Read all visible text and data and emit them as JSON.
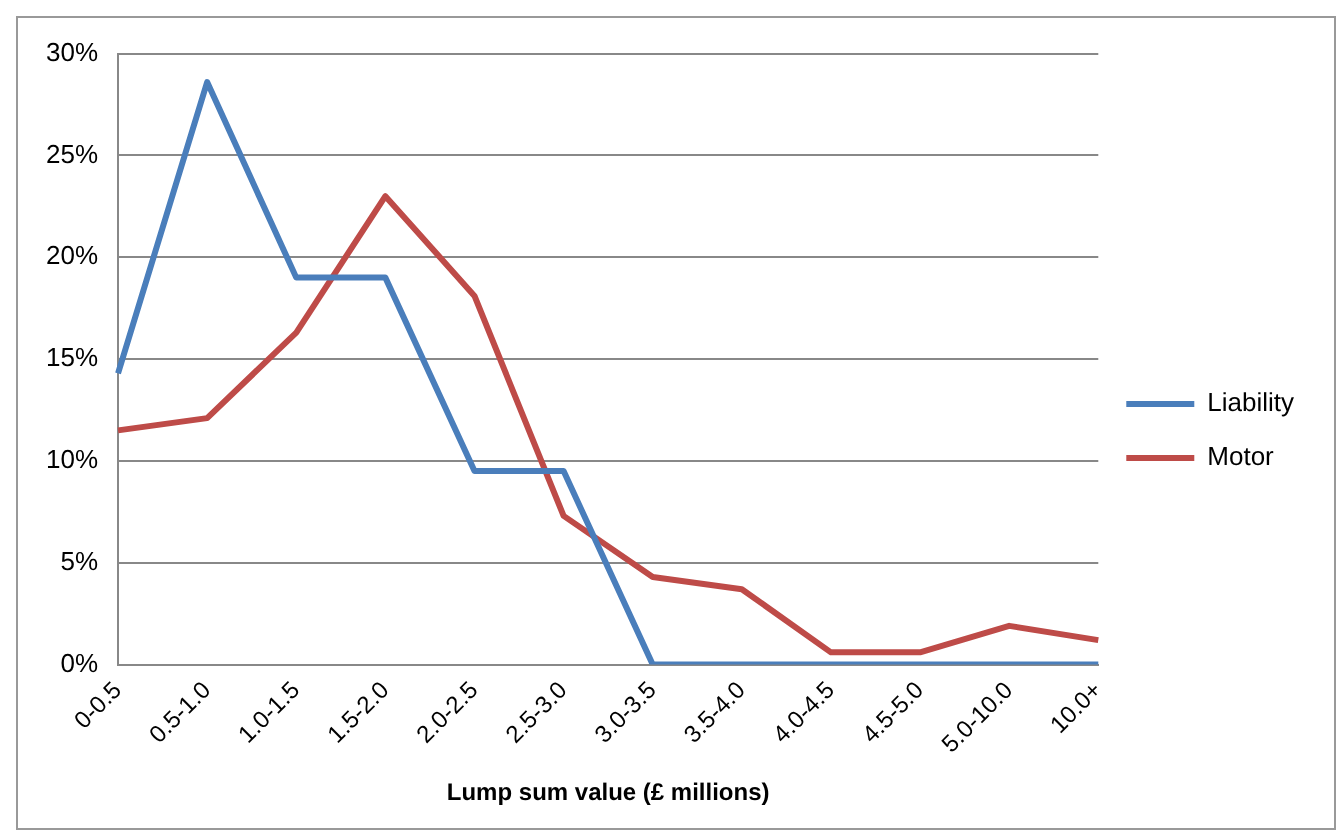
{
  "chart_data": {
    "type": "line",
    "xlabel": "Lump sum value (£ millions)",
    "categories": [
      "0-0.5",
      "0.5-1.0",
      "1.0-1.5",
      "1.5-2.0",
      "2.0-2.5",
      "2.5-3.0",
      "3.0-3.5",
      "3.5-4.0",
      "4.0-4.5",
      "4.5-5.0",
      "5.0-10.0",
      "10.0+"
    ],
    "series": [
      {
        "name": "Liability",
        "color": "#4a7ebb",
        "values": [
          14.3,
          28.6,
          19.0,
          19.0,
          9.5,
          9.5,
          0,
          0,
          0,
          0,
          0,
          0
        ]
      },
      {
        "name": "Motor",
        "color": "#be4b48",
        "values": [
          11.5,
          12.1,
          16.3,
          23.0,
          18.1,
          7.3,
          4.3,
          3.7,
          0.6,
          0.6,
          1.9,
          1.2
        ]
      }
    ],
    "ylim": [
      0,
      30
    ],
    "yticks": [
      {
        "value": 0,
        "label": "0%"
      },
      {
        "value": 5,
        "label": "5%"
      },
      {
        "value": 10,
        "label": "10%"
      },
      {
        "value": 15,
        "label": "15%"
      },
      {
        "value": 20,
        "label": "20%"
      },
      {
        "value": 25,
        "label": "25%"
      },
      {
        "value": 30,
        "label": "30%"
      }
    ],
    "grid": "y",
    "legend": "right",
    "marker": "none",
    "line_style": "solid"
  }
}
